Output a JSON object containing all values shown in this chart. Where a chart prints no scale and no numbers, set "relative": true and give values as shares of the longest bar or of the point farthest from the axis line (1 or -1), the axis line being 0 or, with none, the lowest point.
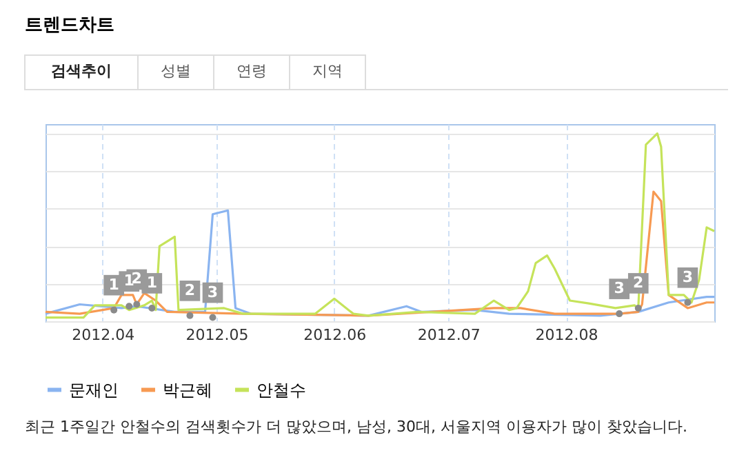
{
  "chart_data": {
    "type": "line",
    "title": "트렌드차트",
    "relative": true,
    "grid": true,
    "legend": "bottom",
    "line_style": "solid",
    "xlim": [
      "2012-03-17",
      "2012-09-09"
    ],
    "xticks": [
      {
        "value": "2012-04-01",
        "label": "2012.04"
      },
      {
        "value": "2012-05-01",
        "label": "2012.05"
      },
      {
        "value": "2012-06-01",
        "label": "2012.06"
      },
      {
        "value": "2012-07-01",
        "label": "2012.07"
      },
      {
        "value": "2012-08-01",
        "label": "2012.08"
      }
    ],
    "series": [
      {
        "name": "문재인",
        "color": "#8ab4f0",
        "x": [
          "2012-03-17",
          "2012-03-26",
          "2012-04-06",
          "2012-04-10",
          "2012-04-20",
          "2012-04-28",
          "2012-04-30",
          "2012-05-04",
          "2012-05-06",
          "2012-05-10",
          "2012-06-10",
          "2012-06-20",
          "2012-06-24",
          "2012-07-08",
          "2012-07-17",
          "2012-08-10",
          "2012-08-20",
          "2012-08-28",
          "2012-09-07",
          "2012-09-09"
        ],
        "values": [
          0.04,
          0.09,
          0.07,
          0.08,
          0.05,
          0.05,
          0.57,
          0.59,
          0.07,
          0.04,
          0.03,
          0.08,
          0.05,
          0.06,
          0.04,
          0.03,
          0.05,
          0.1,
          0.13,
          0.13
        ]
      },
      {
        "name": "박근혜",
        "color": "#f79a52",
        "x": [
          "2012-03-17",
          "2012-03-26",
          "2012-04-04",
          "2012-04-06",
          "2012-04-09",
          "2012-04-10",
          "2012-04-12",
          "2012-04-15",
          "2012-04-18",
          "2012-05-08",
          "2012-06-10",
          "2012-07-13",
          "2012-07-20",
          "2012-07-29",
          "2012-08-15",
          "2012-08-20",
          "2012-08-21",
          "2012-08-24",
          "2012-08-26",
          "2012-08-28",
          "2012-09-02",
          "2012-09-07",
          "2012-09-09"
        ],
        "values": [
          0.05,
          0.04,
          0.07,
          0.14,
          0.14,
          0.09,
          0.15,
          0.11,
          0.05,
          0.04,
          0.03,
          0.07,
          0.07,
          0.04,
          0.04,
          0.05,
          0.09,
          0.69,
          0.64,
          0.14,
          0.07,
          0.1,
          0.1
        ]
      },
      {
        "name": "안철수",
        "color": "#c5e35a",
        "x": [
          "2012-03-17",
          "2012-03-27",
          "2012-03-30",
          "2012-04-06",
          "2012-04-08",
          "2012-04-12",
          "2012-04-14",
          "2012-04-15",
          "2012-04-16",
          "2012-04-20",
          "2012-04-21",
          "2012-05-03",
          "2012-05-08",
          "2012-05-27",
          "2012-06-01",
          "2012-06-06",
          "2012-06-10",
          "2012-06-23",
          "2012-07-08",
          "2012-07-13",
          "2012-07-17",
          "2012-07-19",
          "2012-07-22",
          "2012-07-24",
          "2012-07-27",
          "2012-07-29",
          "2012-08-02",
          "2012-08-07",
          "2012-08-14",
          "2012-08-19",
          "2012-08-20",
          "2012-08-22",
          "2012-08-25",
          "2012-08-26",
          "2012-08-28",
          "2012-09-01",
          "2012-09-03",
          "2012-09-05",
          "2012-09-07",
          "2012-09-09"
        ],
        "values": [
          0.02,
          0.02,
          0.085,
          0.085,
          0.06,
          0.085,
          0.11,
          0.06,
          0.4,
          0.45,
          0.06,
          0.07,
          0.04,
          0.04,
          0.12,
          0.04,
          0.03,
          0.05,
          0.04,
          0.11,
          0.06,
          0.07,
          0.16,
          0.31,
          0.35,
          0.28,
          0.11,
          0.095,
          0.07,
          0.085,
          0.07,
          0.94,
          1.0,
          0.93,
          0.14,
          0.14,
          0.1,
          0.22,
          0.5,
          0.48
        ]
      }
    ],
    "annotations": [
      "검색추이",
      "성별",
      "연령",
      "지역",
      {
        "text": "1",
        "x": "2012-04-04",
        "y": 0.06
      },
      {
        "text": "1",
        "x": "2012-04-08",
        "y": 0.08
      },
      {
        "text": "2",
        "x": "2012-04-10",
        "y": 0.09
      },
      {
        "text": "1",
        "x": "2012-04-14",
        "y": 0.07
      },
      {
        "text": "2",
        "x": "2012-04-24",
        "y": 0.03
      },
      {
        "text": "3",
        "x": "2012-04-30",
        "y": 0.02
      },
      {
        "text": "3",
        "x": "2012-08-15",
        "y": 0.04
      },
      {
        "text": "2",
        "x": "2012-08-20",
        "y": 0.07
      },
      {
        "text": "3",
        "x": "2012-09-02",
        "y": 0.1
      },
      "최근 1주일간 안철수의 검색횟수가 더 많았으며, 남성, 30대, 서울지역 이용자가 많이 찾았습니다."
    ]
  }
}
